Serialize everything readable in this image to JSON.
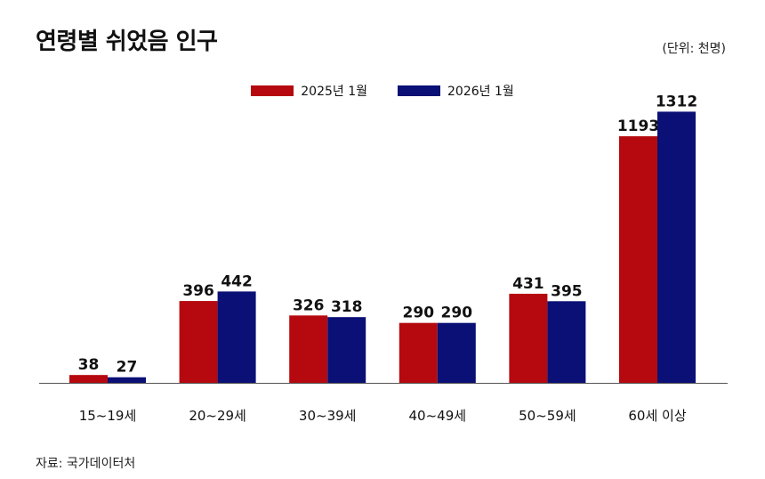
{
  "header": {
    "title": "연령별 쉬었음 인구",
    "unit": "(단위: 천명)"
  },
  "footer": {
    "source": "자료: 국가데이터처"
  },
  "colors": {
    "series_2025": "#b5090f",
    "series_2026": "#0a1075",
    "axis": "#555555"
  },
  "chart_data": {
    "type": "bar",
    "title": "연령별 쉬었음 인구",
    "unit": "(단위: 천명)",
    "categories": [
      "15~19세",
      "20~29세",
      "30~39세",
      "40~49세",
      "50~59세",
      "60세 이상"
    ],
    "series": [
      {
        "name": "2025년 1월",
        "values": [
          38,
          396,
          326,
          290,
          431,
          1193
        ]
      },
      {
        "name": "2026년 1월",
        "values": [
          27,
          442,
          318,
          290,
          395,
          1312
        ]
      }
    ],
    "ylim": [
      0,
      1400
    ],
    "legend_position": "top-center",
    "grid": false
  }
}
